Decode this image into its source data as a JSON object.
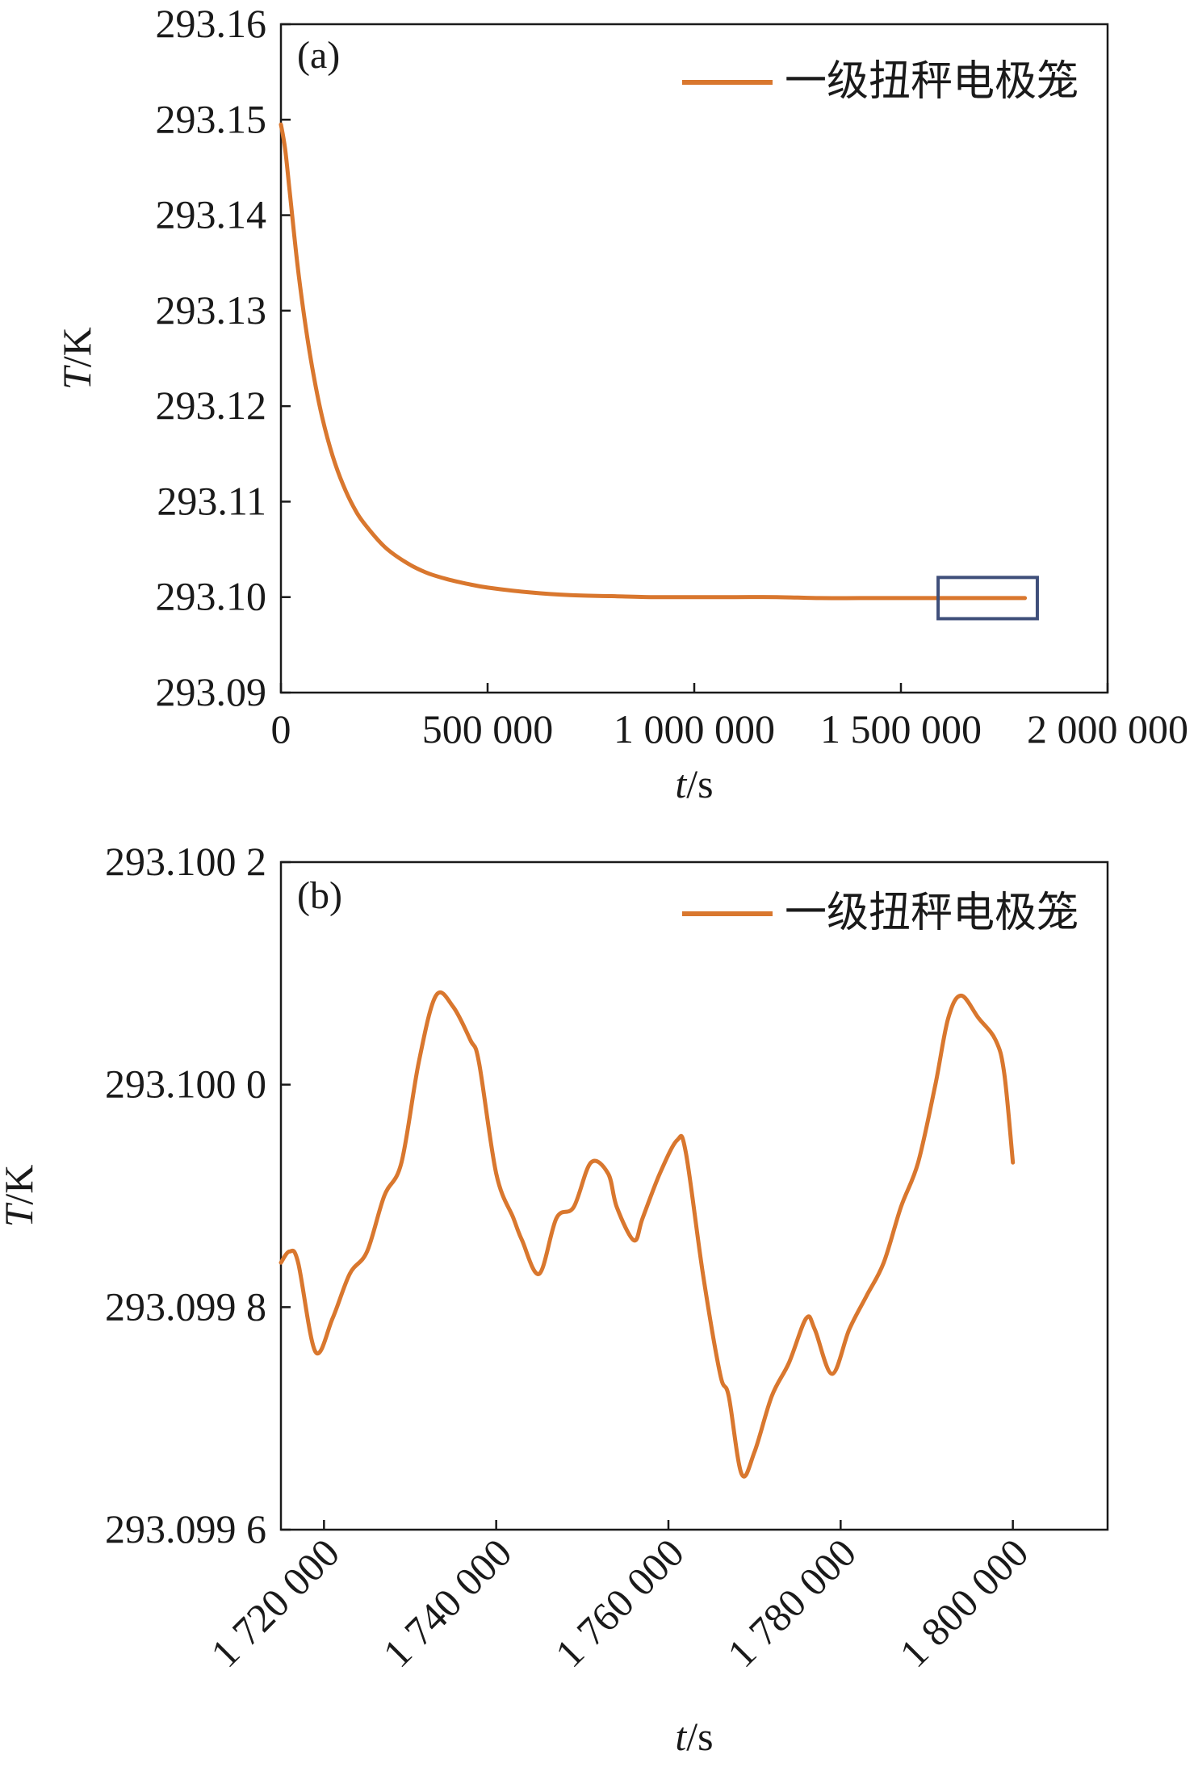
{
  "colors": {
    "series": "#d9772e",
    "axis": "#1a1a1a",
    "highlight_box": "#3f4f7a"
  },
  "chart_data": [
    {
      "type": "line",
      "panel_label": "(a)",
      "xlabel": {
        "var": "t",
        "unit": "/s"
      },
      "ylabel": {
        "var": "T",
        "unit": "/K"
      },
      "xlim": [
        0,
        2000000
      ],
      "ylim": [
        293.09,
        293.16
      ],
      "xticks": [
        {
          "value": 0,
          "label": "0"
        },
        {
          "value": 500000,
          "label": "500 000"
        },
        {
          "value": 1000000,
          "label": "1 000 000"
        },
        {
          "value": 1500000,
          "label": "1 500 000"
        },
        {
          "value": 2000000,
          "label": "2 000 000"
        }
      ],
      "yticks": [
        {
          "value": 293.09,
          "label": "293.09"
        },
        {
          "value": 293.1,
          "label": "293.10"
        },
        {
          "value": 293.11,
          "label": "293.11"
        },
        {
          "value": 293.12,
          "label": "293.12"
        },
        {
          "value": 293.13,
          "label": "293.13"
        },
        {
          "value": 293.14,
          "label": "293.14"
        },
        {
          "value": 293.15,
          "label": "293.15"
        },
        {
          "value": 293.16,
          "label": "293.16"
        }
      ],
      "legend_position": "top-right",
      "grid": false,
      "highlight_region": {
        "x": [
          1590000,
          1830000
        ],
        "y": [
          293.0996,
          293.1002
        ]
      },
      "series": [
        {
          "name": "一级扭秤电极笼",
          "x": [
            0,
            10000,
            20000,
            40000,
            60000,
            80000,
            100000,
            125000,
            150000,
            175000,
            200000,
            250000,
            300000,
            350000,
            400000,
            450000,
            500000,
            600000,
            700000,
            800000,
            900000,
            1000000,
            1100000,
            1200000,
            1300000,
            1400000,
            1500000,
            1600000,
            1700000,
            1800000
          ],
          "y": [
            293.1495,
            293.147,
            293.143,
            293.1348,
            293.1283,
            293.123,
            293.1188,
            293.1148,
            293.1118,
            293.1095,
            293.1078,
            293.1053,
            293.1037,
            293.1026,
            293.1019,
            293.1014,
            293.101,
            293.1005,
            293.1002,
            293.1001,
            293.1,
            293.1,
            293.1,
            293.1,
            293.0999,
            293.0999,
            293.0999,
            293.0999,
            293.0999,
            293.0999
          ]
        }
      ]
    },
    {
      "type": "line",
      "panel_label": "(b)",
      "xlabel": {
        "var": "t",
        "unit": "/s"
      },
      "ylabel": {
        "var": "T",
        "unit": "/K"
      },
      "xlim": [
        1715000,
        1811000
      ],
      "ylim": [
        293.0996,
        293.1002
      ],
      "xticks": [
        {
          "value": 1720000,
          "label": "1 720 000"
        },
        {
          "value": 1740000,
          "label": "1 740 000"
        },
        {
          "value": 1760000,
          "label": "1 760 000"
        },
        {
          "value": 1780000,
          "label": "1 780 000"
        },
        {
          "value": 1800000,
          "label": "1 800 000"
        }
      ],
      "yticks": [
        {
          "value": 293.0996,
          "label": "293.099 6"
        },
        {
          "value": 293.0998,
          "label": "293.099 8"
        },
        {
          "value": 293.1,
          "label": "293.100 0"
        },
        {
          "value": 293.1002,
          "label": "293.100 2"
        }
      ],
      "legend_position": "top-right",
      "grid": false,
      "series": [
        {
          "name": "一级扭秤电极笼",
          "x": [
            1715000,
            1716000,
            1717000,
            1719000,
            1721000,
            1723000,
            1725000,
            1727000,
            1729000,
            1731000,
            1733000,
            1735000,
            1737000,
            1738000,
            1740000,
            1742000,
            1743000,
            1745000,
            1747000,
            1749000,
            1751000,
            1753000,
            1754000,
            1756000,
            1757000,
            1759000,
            1761000,
            1762000,
            1764000,
            1766000,
            1767000,
            1768500,
            1770000,
            1772000,
            1774000,
            1776000,
            1777000,
            1779000,
            1781000,
            1783000,
            1785000,
            1787000,
            1789000,
            1791000,
            1792500,
            1794000,
            1796000,
            1798000,
            1799000,
            1800000
          ],
          "y": [
            293.09984,
            293.09985,
            293.09984,
            293.09976,
            293.09979,
            293.09983,
            293.09985,
            293.0999,
            293.09993,
            293.10002,
            293.10008,
            293.10007,
            293.10004,
            293.10002,
            293.09992,
            293.09988,
            293.09986,
            293.09983,
            293.09988,
            293.09989,
            293.09993,
            293.09992,
            293.09989,
            293.09986,
            293.09988,
            293.09992,
            293.09995,
            293.09994,
            293.09983,
            293.09974,
            293.09972,
            293.09965,
            293.09967,
            293.09972,
            293.09975,
            293.09979,
            293.09978,
            293.09974,
            293.09978,
            293.09981,
            293.09984,
            293.09989,
            293.09993,
            293.1,
            293.10006,
            293.10008,
            293.10006,
            293.10004,
            293.10001,
            293.09993
          ]
        }
      ]
    }
  ]
}
